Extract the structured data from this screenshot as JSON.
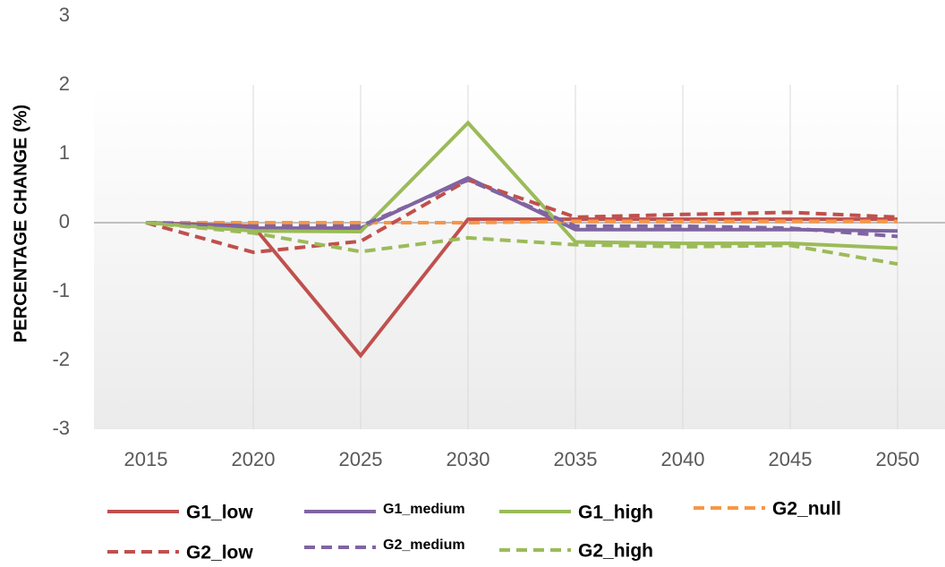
{
  "chart_data": {
    "type": "line",
    "y_label": "PERCENTAGE CHANGE (%)",
    "categories": [
      "2015",
      "2020",
      "2025",
      "2030",
      "2035",
      "2040",
      "2045",
      "2050"
    ],
    "ylim": [
      -3,
      3
    ],
    "yticks": [
      -3,
      -2,
      -1,
      0,
      1,
      2,
      3
    ],
    "grid": true,
    "series": [
      {
        "name": "G1_low",
        "color": "#c0504d",
        "dash": false,
        "values": [
          0,
          -0.05,
          -1.93,
          0.05,
          0.05,
          0.05,
          0.05,
          0.05
        ]
      },
      {
        "name": "G1_medium",
        "color": "#8064a2",
        "dash": false,
        "values": [
          0,
          -0.08,
          -0.08,
          0.65,
          -0.1,
          -0.1,
          -0.1,
          -0.12
        ]
      },
      {
        "name": "G1_high",
        "color": "#9bbb59",
        "dash": false,
        "values": [
          0,
          -0.12,
          -0.13,
          1.45,
          -0.28,
          -0.3,
          -0.3,
          -0.37
        ]
      },
      {
        "name": "G2_null",
        "color": "#f79646",
        "dash": true,
        "values": [
          0,
          0,
          0,
          0,
          0.02,
          0.02,
          0.02,
          0.02
        ]
      },
      {
        "name": "G2_low",
        "color": "#c0504d",
        "dash": true,
        "values": [
          0,
          -0.43,
          -0.27,
          0.62,
          0.08,
          0.12,
          0.15,
          0.08
        ]
      },
      {
        "name": "G2_medium",
        "color": "#8064a2",
        "dash": true,
        "values": [
          0,
          -0.05,
          -0.05,
          0.62,
          -0.05,
          -0.05,
          -0.08,
          -0.2
        ]
      },
      {
        "name": "G2_high",
        "color": "#9bbb59",
        "dash": true,
        "values": [
          0,
          -0.15,
          -0.42,
          -0.22,
          -0.32,
          -0.35,
          -0.33,
          -0.6
        ]
      }
    ]
  }
}
